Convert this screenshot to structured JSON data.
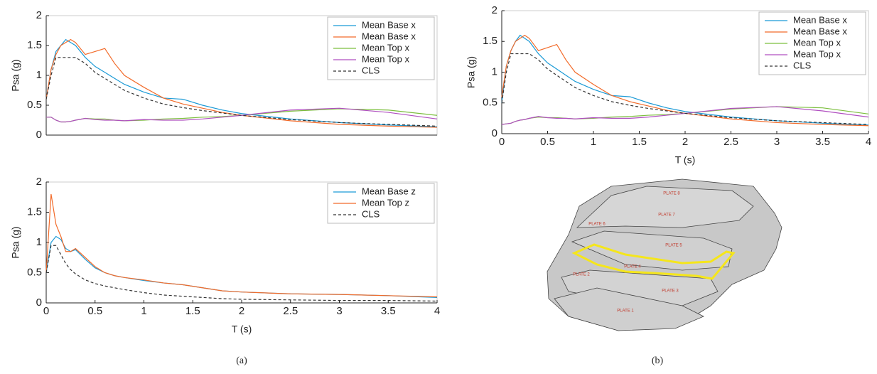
{
  "chart_data": [
    {
      "type": "line",
      "ylabel": "Psa (g)",
      "xlim": [
        0,
        4
      ],
      "ylim": [
        0,
        2
      ],
      "yticks": [
        0,
        0.5,
        1,
        1.5,
        2
      ],
      "legend": "upper right",
      "x": [
        0,
        0.05,
        0.1,
        0.15,
        0.2,
        0.25,
        0.3,
        0.4,
        0.5,
        0.6,
        0.7,
        0.8,
        1,
        1.2,
        1.4,
        1.6,
        1.8,
        2,
        2.5,
        3,
        3.5,
        4
      ],
      "series": [
        {
          "name": "Mean Base x",
          "color": "#1b9ad6",
          "values": [
            0.6,
            1.1,
            1.4,
            1.5,
            1.6,
            1.55,
            1.5,
            1.3,
            1.15,
            1.05,
            0.95,
            0.85,
            0.72,
            0.62,
            0.6,
            0.5,
            0.42,
            0.36,
            0.27,
            0.21,
            0.17,
            0.14
          ]
        },
        {
          "name": "Mean Base x",
          "color": "#f26b2a",
          "values": [
            0.6,
            1.1,
            1.35,
            1.5,
            1.55,
            1.6,
            1.55,
            1.35,
            1.4,
            1.45,
            1.2,
            1.0,
            0.8,
            0.62,
            0.52,
            0.45,
            0.38,
            0.33,
            0.24,
            0.18,
            0.15,
            0.13
          ]
        },
        {
          "name": "Mean Top x",
          "color": "#7cbf3e",
          "values": [
            0.3,
            0.3,
            0.25,
            0.22,
            0.22,
            0.23,
            0.25,
            0.28,
            0.27,
            0.27,
            0.25,
            0.24,
            0.25,
            0.27,
            0.28,
            0.3,
            0.31,
            0.33,
            0.4,
            0.44,
            0.42,
            0.33
          ]
        },
        {
          "name": "Mean Top x",
          "color": "#b04fc0",
          "values": [
            0.3,
            0.3,
            0.25,
            0.22,
            0.22,
            0.23,
            0.25,
            0.28,
            0.26,
            0.25,
            0.25,
            0.24,
            0.26,
            0.25,
            0.25,
            0.27,
            0.3,
            0.33,
            0.42,
            0.45,
            0.38,
            0.27
          ]
        },
        {
          "name": "CLS",
          "color": "#333333",
          "line_style": "dashed",
          "values": [
            0.6,
            1.0,
            1.3,
            1.3,
            1.3,
            1.3,
            1.3,
            1.2,
            1.05,
            0.95,
            0.85,
            0.75,
            0.62,
            0.52,
            0.46,
            0.41,
            0.37,
            0.33,
            0.26,
            0.21,
            0.18,
            0.15
          ]
        }
      ]
    },
    {
      "type": "line",
      "ylabel": "Psa (g)",
      "xlabel": "T (s)",
      "xlim": [
        0,
        4
      ],
      "ylim": [
        0,
        2
      ],
      "yticks": [
        0,
        0.5,
        1,
        1.5,
        2
      ],
      "xticks": [
        0,
        0.5,
        1,
        1.5,
        2,
        2.5,
        3,
        3.5,
        4
      ],
      "legend": "upper right",
      "x": [
        0,
        0.05,
        0.1,
        0.15,
        0.2,
        0.25,
        0.3,
        0.4,
        0.5,
        0.6,
        0.7,
        0.8,
        1,
        1.2,
        1.4,
        1.6,
        1.8,
        2,
        2.5,
        3,
        3.5,
        4
      ],
      "series": [
        {
          "name": "Mean Base x",
          "color": "#1b9ad6",
          "values": [
            0.5,
            1.1,
            1.35,
            1.5,
            1.6,
            1.55,
            1.5,
            1.3,
            1.15,
            1.05,
            0.95,
            0.85,
            0.72,
            0.62,
            0.6,
            0.5,
            0.42,
            0.36,
            0.27,
            0.21,
            0.17,
            0.14
          ]
        },
        {
          "name": "Mean Base x",
          "color": "#f26b2a",
          "values": [
            0.6,
            1.1,
            1.35,
            1.5,
            1.55,
            1.6,
            1.55,
            1.35,
            1.4,
            1.45,
            1.2,
            1.0,
            0.8,
            0.62,
            0.52,
            0.45,
            0.38,
            0.33,
            0.24,
            0.18,
            0.15,
            0.13
          ]
        },
        {
          "name": "Mean Top x",
          "color": "#7cbf3e",
          "values": [
            0.15,
            0.16,
            0.17,
            0.2,
            0.22,
            0.23,
            0.25,
            0.27,
            0.26,
            0.26,
            0.25,
            0.24,
            0.25,
            0.27,
            0.28,
            0.3,
            0.31,
            0.33,
            0.4,
            0.44,
            0.42,
            0.32
          ]
        },
        {
          "name": "Mean Top x",
          "color": "#b04fc0",
          "values": [
            0.15,
            0.16,
            0.17,
            0.2,
            0.22,
            0.23,
            0.25,
            0.28,
            0.26,
            0.25,
            0.25,
            0.24,
            0.26,
            0.25,
            0.25,
            0.27,
            0.3,
            0.33,
            0.41,
            0.44,
            0.37,
            0.27
          ]
        },
        {
          "name": "CLS",
          "color": "#333333",
          "line_style": "dashed",
          "values": [
            0.5,
            1.0,
            1.3,
            1.3,
            1.3,
            1.3,
            1.3,
            1.2,
            1.05,
            0.95,
            0.85,
            0.75,
            0.62,
            0.52,
            0.46,
            0.41,
            0.37,
            0.33,
            0.26,
            0.21,
            0.18,
            0.15
          ]
        }
      ]
    },
    {
      "type": "line",
      "ylabel": "Psa (g)",
      "xlabel": "T (s)",
      "xlim": [
        0,
        4
      ],
      "ylim": [
        0,
        2
      ],
      "yticks": [
        0,
        0.5,
        1,
        1.5,
        2
      ],
      "xticks": [
        0,
        0.5,
        1,
        1.5,
        2,
        2.5,
        3,
        3.5,
        4
      ],
      "legend": "upper right",
      "x": [
        0,
        0.05,
        0.1,
        0.15,
        0.2,
        0.25,
        0.3,
        0.4,
        0.5,
        0.6,
        0.7,
        0.8,
        1,
        1.2,
        1.4,
        1.6,
        1.8,
        2,
        2.5,
        3,
        3.5,
        4
      ],
      "series": [
        {
          "name": "Mean Base z",
          "color": "#1b9ad6",
          "values": [
            0.5,
            1.0,
            1.1,
            1.05,
            0.9,
            0.85,
            0.88,
            0.72,
            0.58,
            0.5,
            0.45,
            0.42,
            0.37,
            0.33,
            0.3,
            0.25,
            0.2,
            0.18,
            0.15,
            0.14,
            0.12,
            0.09
          ]
        },
        {
          "name": "Mean Top z",
          "color": "#f26b2a",
          "values": [
            0.5,
            1.8,
            1.3,
            1.1,
            0.85,
            0.85,
            0.9,
            0.75,
            0.6,
            0.5,
            0.45,
            0.42,
            0.38,
            0.33,
            0.3,
            0.25,
            0.2,
            0.18,
            0.15,
            0.14,
            0.12,
            0.1
          ]
        },
        {
          "name": "CLS",
          "color": "#333333",
          "line_style": "dashed",
          "values": [
            0.5,
            0.95,
            0.95,
            0.8,
            0.65,
            0.55,
            0.48,
            0.38,
            0.32,
            0.28,
            0.25,
            0.22,
            0.17,
            0.13,
            0.11,
            0.09,
            0.07,
            0.06,
            0.05,
            0.04,
            0.04,
            0.03
          ]
        }
      ]
    }
  ],
  "captions": [
    "(a)",
    "(b)"
  ],
  "diagram": {
    "labels": [
      "PLATE 8",
      "PLATE 7",
      "PLATE 6",
      "PLATE 5",
      "PLATE 4",
      "PLATE 2",
      "PLATE 3",
      "PLATE 1"
    ]
  }
}
